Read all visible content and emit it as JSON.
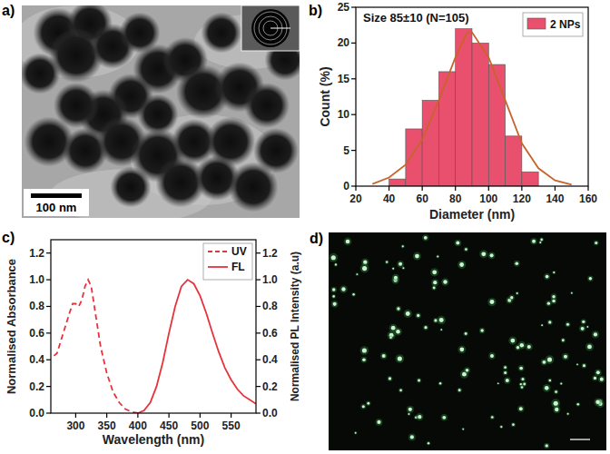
{
  "chart_data": [
    {
      "type": "histogram",
      "panel_label": "b)",
      "annotations": [
        "Size 85±10 (N=105)"
      ],
      "x_label": "Diameter (nm)",
      "y_label": "Count (%)",
      "bins": [
        40,
        50,
        60,
        70,
        80,
        90,
        100,
        110,
        120,
        130
      ],
      "series": [
        {
          "name": "2 NPs",
          "type": "bar",
          "color": "#e8506e",
          "values": [
            1,
            8,
            12,
            16,
            22,
            20,
            17,
            7,
            2
          ]
        },
        {
          "type": "line",
          "color": "#c8642a",
          "x": [
            30,
            40,
            50,
            60,
            70,
            80,
            87,
            90,
            100,
            110,
            120,
            130,
            140,
            150
          ],
          "values": [
            0.3,
            1.2,
            3,
            6.5,
            12,
            18,
            21.5,
            21.5,
            18,
            12,
            6,
            2.5,
            0.8,
            0.2
          ]
        }
      ],
      "xlim": [
        20,
        160
      ],
      "xticks": [
        20,
        40,
        60,
        80,
        100,
        120,
        140,
        160
      ],
      "ylim": [
        0,
        25
      ],
      "yticks": [
        0,
        5,
        10,
        15,
        20,
        25
      ],
      "legend": "top-right",
      "grid": false
    },
    {
      "type": "line",
      "panel_label": "c)",
      "x_label": "Wavelength (nm)",
      "y_label": "Normalised Absorbance",
      "y2_label": "Normalised PL Intensity (a.u)",
      "series": [
        {
          "name": "UV",
          "color": "#e8323c",
          "line_style": "dashed",
          "x": [
            265,
            270,
            280,
            290,
            295,
            300,
            305,
            310,
            315,
            320,
            325,
            330,
            340,
            350,
            360,
            370,
            380,
            390,
            400
          ],
          "values": [
            0.43,
            0.45,
            0.6,
            0.75,
            0.82,
            0.82,
            0.8,
            0.85,
            0.95,
            1.0,
            0.95,
            0.8,
            0.5,
            0.3,
            0.16,
            0.08,
            0.03,
            0.01,
            0.0
          ]
        },
        {
          "name": "FL",
          "color": "#e8323c",
          "line_style": "solid",
          "axis": "y2",
          "x": [
            400,
            410,
            420,
            430,
            440,
            450,
            460,
            470,
            480,
            490,
            500,
            510,
            520,
            530,
            540,
            550,
            560,
            570,
            580,
            590
          ],
          "values": [
            0.0,
            0.02,
            0.08,
            0.2,
            0.38,
            0.6,
            0.8,
            0.95,
            1.0,
            0.97,
            0.88,
            0.75,
            0.6,
            0.46,
            0.34,
            0.25,
            0.18,
            0.13,
            0.1,
            0.07
          ]
        }
      ],
      "xlim": [
        260,
        590
      ],
      "xticks": [
        300,
        350,
        400,
        450,
        500,
        550
      ],
      "ylim": [
        0,
        1.3
      ],
      "yticks": [
        {
          "value": 0,
          "label": "0.0"
        },
        0.2,
        0.4,
        0.6,
        0.8,
        {
          "value": 1,
          "label": "1.0"
        },
        1.2
      ],
      "y2lim": [
        0,
        1.3
      ],
      "y2ticks": [
        {
          "value": 0,
          "label": "0.0"
        },
        0.2,
        0.4,
        0.6,
        0.8,
        {
          "value": 1,
          "label": "1.0"
        },
        1.2
      ],
      "legend": "top-right",
      "grid": false
    }
  ],
  "images": [
    {
      "panel_label": "a)",
      "scale_bar": "100 nm"
    },
    {
      "panel_label": "d)"
    }
  ]
}
